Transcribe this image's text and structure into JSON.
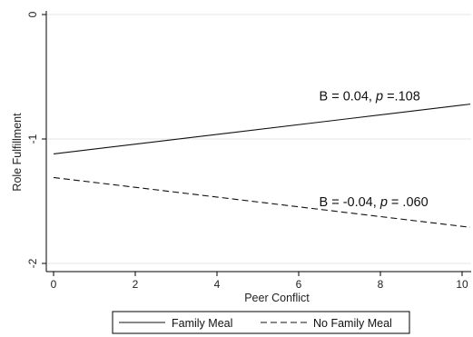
{
  "chart_data": {
    "type": "line",
    "title": "",
    "xlabel": "Peer Conflict",
    "ylabel": "Role Fulfillment",
    "xlim": [
      0,
      10.2
    ],
    "ylim": [
      -2.1,
      0
    ],
    "x_ticks": [
      0,
      2,
      4,
      6,
      8,
      10
    ],
    "y_ticks": [
      0,
      -1,
      -2
    ],
    "grid": "horizontal",
    "legend_position": "bottom",
    "series": [
      {
        "name": "Family Meal",
        "style": "solid",
        "color": "#111111",
        "x": [
          0,
          10.2
        ],
        "y": [
          -1.12,
          -0.72
        ],
        "annotation": {
          "text_before": "B = 0.04, ",
          "italic": "p",
          "text_after": " =.108",
          "x": 6.5,
          "y": -0.69
        }
      },
      {
        "name": "No Family Meal",
        "style": "dashed",
        "color": "#111111",
        "x": [
          0,
          10.2
        ],
        "y": [
          -1.31,
          -1.71
        ],
        "annotation": {
          "text_before": "B = -0.04, ",
          "italic": "p",
          "text_after": " = .060",
          "x": 6.5,
          "y": -1.54
        }
      }
    ]
  }
}
